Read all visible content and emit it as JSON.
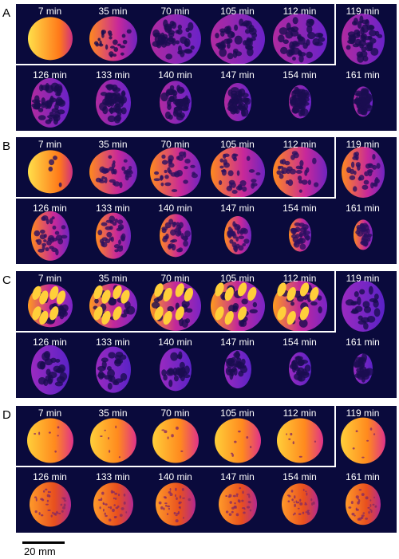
{
  "panels": [
    {
      "letter": "A",
      "style": "porous",
      "labels": [
        "7 min",
        "35 min",
        "70 min",
        "105 min",
        "112 min",
        "119 min",
        "126 min",
        "133 min",
        "140 min",
        "147 min",
        "154 min",
        "161 min"
      ]
    },
    {
      "letter": "B",
      "style": "porous-bright",
      "labels": [
        "7 min",
        "35 min",
        "70 min",
        "105 min",
        "112 min",
        "119 min",
        "126 min",
        "133 min",
        "140 min",
        "147 min",
        "154 min",
        "161 min"
      ]
    },
    {
      "letter": "C",
      "style": "chunks",
      "labels": [
        "7 min",
        "35 min",
        "70 min",
        "105 min",
        "112 min",
        "119 min",
        "126 min",
        "133 min",
        "140 min",
        "147 min",
        "154 min",
        "161 min"
      ]
    },
    {
      "letter": "D",
      "style": "solid",
      "labels": [
        "7 min",
        "35 min",
        "70 min",
        "105 min",
        "112 min",
        "119 min",
        "126 min",
        "133 min",
        "140 min",
        "147 min",
        "154 min",
        "161 min"
      ]
    }
  ],
  "scale_bar": {
    "label": "20 mm"
  },
  "colors": {
    "background": "#0a0a3c",
    "hot": "#ffd24a",
    "warm": "#ff7a1a",
    "mid": "#c2289a",
    "cool": "#6a22c8",
    "label": "#ffffff"
  }
}
